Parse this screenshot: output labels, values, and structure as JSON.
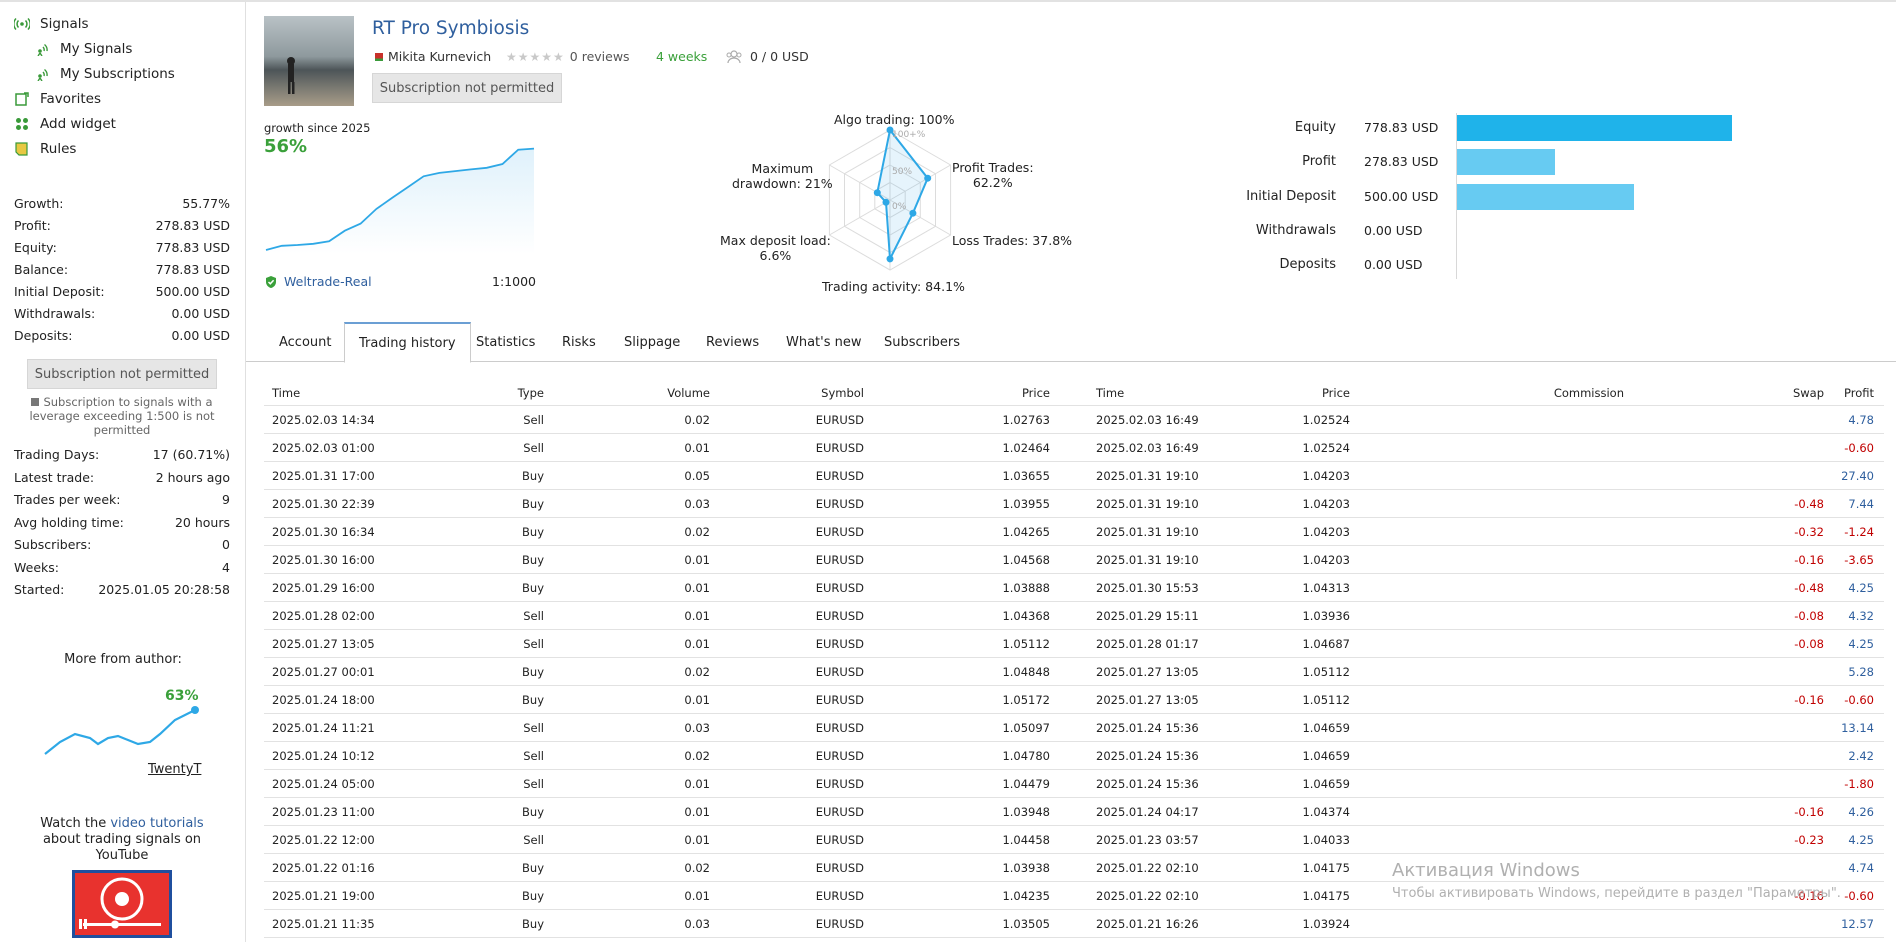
{
  "sidebar": {
    "nav": [
      {
        "label": "Signals",
        "icon": "signal-icon"
      },
      {
        "label": "My Signals",
        "icon": "signal-icon"
      },
      {
        "label": "My Subscriptions",
        "icon": "signal-icon"
      },
      {
        "label": "Favorites",
        "icon": "favorites-icon"
      },
      {
        "label": "Add widget",
        "icon": "widget-icon"
      },
      {
        "label": "Rules",
        "icon": "rules-icon"
      }
    ],
    "stats": [
      {
        "k": "Growth:",
        "v": "55.77%"
      },
      {
        "k": "Profit:",
        "v": "278.83 USD"
      },
      {
        "k": "Equity:",
        "v": "778.83 USD"
      },
      {
        "k": "Balance:",
        "v": "778.83 USD"
      },
      {
        "k": "Initial Deposit:",
        "v": "500.00 USD"
      },
      {
        "k": "Withdrawals:",
        "v": "0.00 USD"
      },
      {
        "k": "Deposits:",
        "v": "0.00 USD"
      }
    ],
    "subscribe_button": "Subscription not permitted",
    "subscribe_note": "Subscription to signals with a leverage exceeding 1:500 is not permitted",
    "stats2": [
      {
        "k": "Trading Days:",
        "v": "17 (60.71%)"
      },
      {
        "k": "Latest trade:",
        "v": "2 hours ago"
      },
      {
        "k": "Trades per week:",
        "v": "9"
      },
      {
        "k": "Avg holding time:",
        "v": "20 hours"
      },
      {
        "k": "Subscribers:",
        "v": "0"
      },
      {
        "k": "Weeks:",
        "v": "4"
      },
      {
        "k": "Started:",
        "v": "2025.01.05 20:28:58"
      }
    ],
    "more_title": "More from author:",
    "more_growth": "63%",
    "more_name": "TwentyT",
    "tutorial_pre": "Watch the ",
    "tutorial_link": "video tutorials",
    "tutorial_post": " about trading signals on YouTube"
  },
  "header": {
    "title": "RT Pro Symbiosis",
    "author": "Mikita Kurnevich",
    "reviews": "0 reviews",
    "weeks": "4 weeks",
    "subscribers": "0 / 0 USD",
    "subscribe_button": "Subscription not permitted",
    "growth_label": "growth since 2025",
    "growth_value": "56%",
    "broker": "Weltrade-Real",
    "leverage": "1:1000"
  },
  "growth_curve": [
    0,
    2.2,
    2.6,
    3.2,
    4.5,
    10.0,
    13.7,
    21.3,
    27.0,
    32.6,
    38.2,
    40.0,
    40.9,
    41.8,
    42.6,
    44.6,
    52.0,
    52.6
  ],
  "radar": {
    "ticks": [
      "100+%",
      "50%",
      "0%"
    ],
    "algo": "Algo trading: 100%",
    "profit_trades_1": "Profit Trades:",
    "profit_trades_2": "62.2%",
    "loss_trades": "Loss Trades: 37.8%",
    "activity": "Trading activity: 84.1%",
    "deposit_load_1": "Max deposit load:",
    "deposit_load_2": "6.6%",
    "drawdown_1": "Maximum",
    "drawdown_2": "drawdown: 21%",
    "values": [
      100,
      62.2,
      37.8,
      84.1,
      6.6,
      21
    ]
  },
  "bars": [
    {
      "label": "Equity",
      "value": "778.83 USD",
      "amount": 778.83,
      "color": "#1fb3ea"
    },
    {
      "label": "Profit",
      "value": "278.83 USD",
      "amount": 278.83,
      "color": "#67cbf2"
    },
    {
      "label": "Initial Deposit",
      "value": "500.00 USD",
      "amount": 500.0,
      "color": "#67cbf2"
    },
    {
      "label": "Withdrawals",
      "value": "0.00 USD",
      "amount": 0,
      "color": "#67cbf2"
    },
    {
      "label": "Deposits",
      "value": "0.00 USD",
      "amount": 0,
      "color": "#67cbf2"
    }
  ],
  "tabs": [
    "Account",
    "Trading history",
    "Statistics",
    "Risks",
    "Slippage",
    "Reviews",
    "What's new",
    "Subscribers"
  ],
  "table": {
    "headers": [
      "Time",
      "Type",
      "Volume",
      "Symbol",
      "Price",
      "Time",
      "Price",
      "Commission",
      "Swap",
      "Profit"
    ],
    "rows": [
      [
        "2025.02.03 14:34",
        "Sell",
        "0.02",
        "EURUSD",
        "1.02763",
        "2025.02.03 16:49",
        "1.02524",
        "",
        "",
        "4.78"
      ],
      [
        "2025.02.03 01:00",
        "Sell",
        "0.01",
        "EURUSD",
        "1.02464",
        "2025.02.03 16:49",
        "1.02524",
        "",
        "",
        "-0.60"
      ],
      [
        "2025.01.31 17:00",
        "Buy",
        "0.05",
        "EURUSD",
        "1.03655",
        "2025.01.31 19:10",
        "1.04203",
        "",
        "",
        "27.40"
      ],
      [
        "2025.01.30 22:39",
        "Buy",
        "0.03",
        "EURUSD",
        "1.03955",
        "2025.01.31 19:10",
        "1.04203",
        "",
        "-0.48",
        "7.44"
      ],
      [
        "2025.01.30 16:34",
        "Buy",
        "0.02",
        "EURUSD",
        "1.04265",
        "2025.01.31 19:10",
        "1.04203",
        "",
        "-0.32",
        "-1.24"
      ],
      [
        "2025.01.30 16:00",
        "Buy",
        "0.01",
        "EURUSD",
        "1.04568",
        "2025.01.31 19:10",
        "1.04203",
        "",
        "-0.16",
        "-3.65"
      ],
      [
        "2025.01.29 16:00",
        "Buy",
        "0.01",
        "EURUSD",
        "1.03888",
        "2025.01.30 15:53",
        "1.04313",
        "",
        "-0.48",
        "4.25"
      ],
      [
        "2025.01.28 02:00",
        "Sell",
        "0.01",
        "EURUSD",
        "1.04368",
        "2025.01.29 15:11",
        "1.03936",
        "",
        "-0.08",
        "4.32"
      ],
      [
        "2025.01.27 13:05",
        "Sell",
        "0.01",
        "EURUSD",
        "1.05112",
        "2025.01.28 01:17",
        "1.04687",
        "",
        "-0.08",
        "4.25"
      ],
      [
        "2025.01.27 00:01",
        "Buy",
        "0.02",
        "EURUSD",
        "1.04848",
        "2025.01.27 13:05",
        "1.05112",
        "",
        "",
        "5.28"
      ],
      [
        "2025.01.24 18:00",
        "Buy",
        "0.01",
        "EURUSD",
        "1.05172",
        "2025.01.27 13:05",
        "1.05112",
        "",
        "-0.16",
        "-0.60"
      ],
      [
        "2025.01.24 11:21",
        "Sell",
        "0.03",
        "EURUSD",
        "1.05097",
        "2025.01.24 15:36",
        "1.04659",
        "",
        "",
        "13.14"
      ],
      [
        "2025.01.24 10:12",
        "Sell",
        "0.02",
        "EURUSD",
        "1.04780",
        "2025.01.24 15:36",
        "1.04659",
        "",
        "",
        "2.42"
      ],
      [
        "2025.01.24 05:00",
        "Sell",
        "0.01",
        "EURUSD",
        "1.04479",
        "2025.01.24 15:36",
        "1.04659",
        "",
        "",
        "-1.80"
      ],
      [
        "2025.01.23 11:00",
        "Buy",
        "0.01",
        "EURUSD",
        "1.03948",
        "2025.01.24 04:17",
        "1.04374",
        "",
        "-0.16",
        "4.26"
      ],
      [
        "2025.01.22 12:00",
        "Sell",
        "0.01",
        "EURUSD",
        "1.04458",
        "2025.01.23 03:57",
        "1.04033",
        "",
        "-0.23",
        "4.25"
      ],
      [
        "2025.01.22 01:16",
        "Buy",
        "0.02",
        "EURUSD",
        "1.03938",
        "2025.01.22 02:10",
        "1.04175",
        "",
        "",
        "4.74"
      ],
      [
        "2025.01.21 19:00",
        "Buy",
        "0.01",
        "EURUSD",
        "1.04235",
        "2025.01.22 02:10",
        "1.04175",
        "",
        "-0.16",
        "-0.60"
      ],
      [
        "2025.01.21 11:35",
        "Buy",
        "0.03",
        "EURUSD",
        "1.03505",
        "2025.01.21 16:26",
        "1.03924",
        "",
        "",
        "12.57"
      ]
    ]
  },
  "watermark": {
    "line1": "Активация Windows",
    "line2": "Чтобы активировать Windows, перейдите в раздел \"Параметры\"."
  }
}
